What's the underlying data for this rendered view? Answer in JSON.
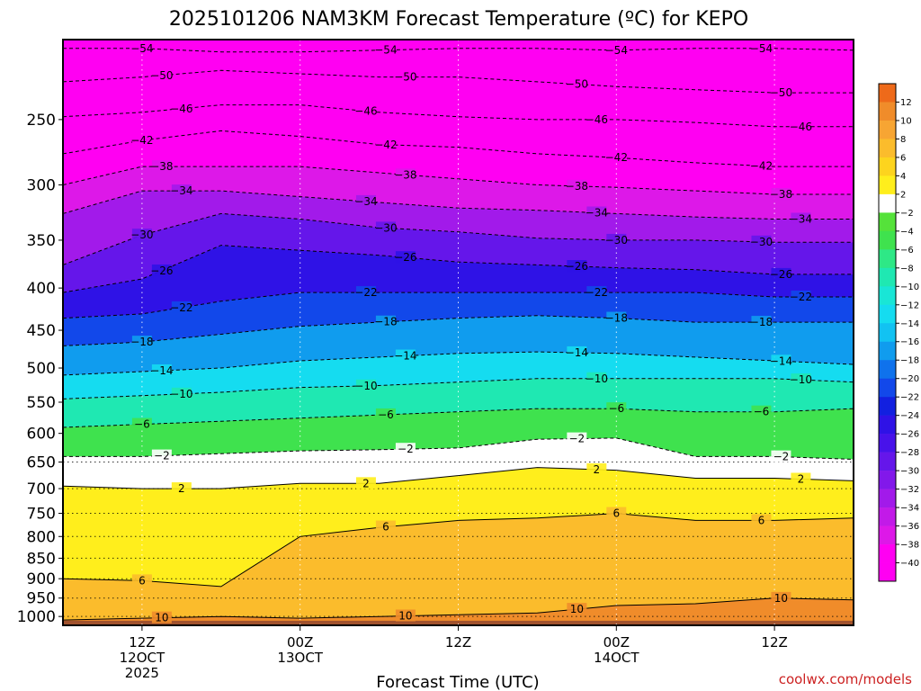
{
  "chart_data": {
    "type": "heatmap",
    "title": "2025101206 NAM3KM Forecast Temperature (ºC) for KEPO",
    "xlabel": "Forecast Time (UTC)",
    "credit": "coolwx.com/models",
    "x_ticks": [
      {
        "hour": 6,
        "l1": "12Z",
        "l2": "12OCT",
        "l3": "2025"
      },
      {
        "hour": 18,
        "l1": "00Z",
        "l2": "13OCT",
        "l3": ""
      },
      {
        "hour": 30,
        "l1": "12Z",
        "l2": "",
        "l3": ""
      },
      {
        "hour": 42,
        "l1": "00Z",
        "l2": "14OCT",
        "l3": ""
      },
      {
        "hour": 54,
        "l1": "12Z",
        "l2": "",
        "l3": ""
      }
    ],
    "xlim_hours": [
      0,
      60
    ],
    "y_ticks": [
      250,
      300,
      350,
      400,
      450,
      500,
      550,
      600,
      650,
      700,
      750,
      800,
      850,
      900,
      950,
      1000
    ],
    "ylim_hpa": [
      1025,
      200
    ],
    "colorbar_levels": [
      12,
      10,
      8,
      6,
      4,
      2,
      -2,
      -4,
      -6,
      -8,
      -10,
      -12,
      -14,
      -16,
      -18,
      -20,
      -22,
      -24,
      -26,
      -28,
      -30,
      -32,
      -34,
      -36,
      -38,
      -40
    ],
    "isotherms": [
      {
        "temp": -54,
        "p": [
          205,
          205,
          207,
          207,
          206,
          205,
          205,
          206,
          205,
          205,
          206
        ]
      },
      {
        "temp": -50,
        "p": [
          225,
          222,
          218,
          220,
          222,
          222,
          225,
          228,
          230,
          232,
          232
        ]
      },
      {
        "temp": -46,
        "p": [
          248,
          245,
          240,
          240,
          245,
          248,
          250,
          250,
          252,
          255,
          255
        ]
      },
      {
        "temp": -42,
        "p": [
          275,
          265,
          258,
          262,
          268,
          270,
          275,
          278,
          282,
          285,
          285
        ]
      },
      {
        "temp": -38,
        "p": [
          300,
          285,
          285,
          285,
          290,
          295,
          300,
          302,
          305,
          308,
          308
        ]
      },
      {
        "temp": -34,
        "p": [
          325,
          305,
          305,
          310,
          315,
          320,
          322,
          325,
          328,
          330,
          330
        ]
      },
      {
        "temp": -30,
        "p": [
          375,
          345,
          325,
          330,
          338,
          342,
          348,
          350,
          350,
          352,
          352
        ]
      },
      {
        "temp": -26,
        "p": [
          405,
          390,
          355,
          360,
          365,
          372,
          375,
          378,
          380,
          385,
          385
        ]
      },
      {
        "temp": -22,
        "p": [
          435,
          430,
          415,
          405,
          405,
          405,
          405,
          405,
          405,
          410,
          410
        ]
      },
      {
        "temp": -18,
        "p": [
          470,
          465,
          455,
          445,
          440,
          435,
          432,
          435,
          440,
          440,
          440
        ]
      },
      {
        "temp": -14,
        "p": [
          510,
          505,
          500,
          490,
          485,
          480,
          478,
          480,
          485,
          490,
          495
        ]
      },
      {
        "temp": -10,
        "p": [
          545,
          540,
          535,
          528,
          525,
          520,
          515,
          515,
          515,
          515,
          520
        ]
      },
      {
        "temp": -6,
        "p": [
          590,
          585,
          580,
          575,
          570,
          565,
          560,
          560,
          565,
          565,
          560
        ]
      },
      {
        "temp": -2,
        "p": [
          640,
          640,
          635,
          630,
          628,
          625,
          610,
          608,
          640,
          640,
          645
        ]
      },
      {
        "temp": 2,
        "p": [
          695,
          700,
          700,
          690,
          690,
          675,
          660,
          665,
          680,
          680,
          685
        ]
      },
      {
        "temp": 6,
        "p": [
          900,
          905,
          920,
          800,
          780,
          765,
          760,
          750,
          765,
          765,
          760
        ]
      },
      {
        "temp": 10,
        "p": [
          1010,
          1005,
          1000,
          1005,
          1000,
          995,
          990,
          970,
          965,
          950,
          955
        ]
      }
    ]
  }
}
